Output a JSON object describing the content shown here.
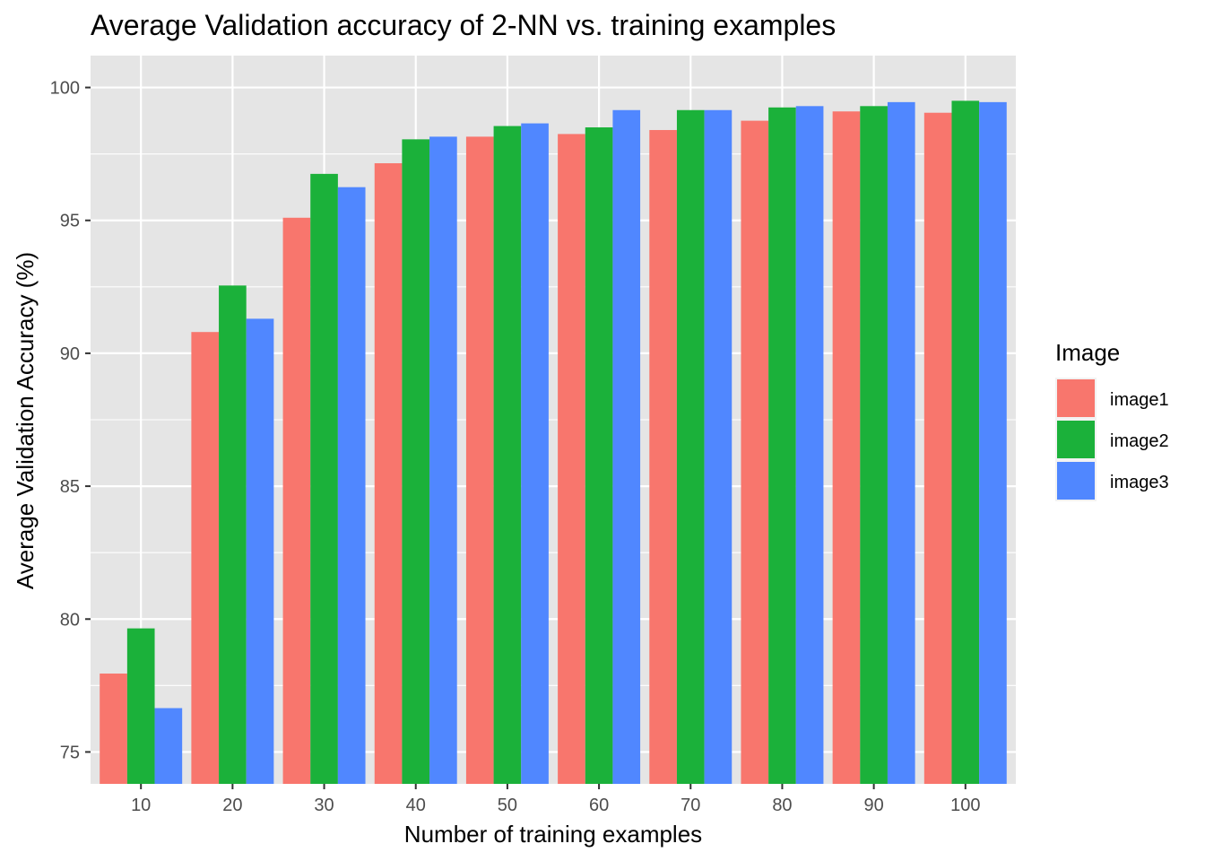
{
  "chart_data": {
    "type": "bar",
    "title": "Average Validation accuracy of 2-NN vs. training examples",
    "xlabel": "Number of training examples",
    "ylabel": "Average Validation Accuracy (%)",
    "categories": [
      "10",
      "20",
      "30",
      "40",
      "50",
      "60",
      "70",
      "80",
      "90",
      "100"
    ],
    "ylim": [
      73.8,
      101.2
    ],
    "yticks": [
      75,
      80,
      85,
      90,
      95,
      100
    ],
    "grid": true,
    "legend": {
      "title": "Image",
      "position": "right"
    },
    "series": [
      {
        "name": "image1",
        "color": "#F8766D",
        "values": [
          77.95,
          90.8,
          95.1,
          97.15,
          98.15,
          98.25,
          98.4,
          98.75,
          99.1,
          99.05
        ]
      },
      {
        "name": "image2",
        "color": "#1BB13A",
        "values": [
          79.65,
          92.55,
          96.75,
          98.05,
          98.55,
          98.5,
          99.15,
          99.25,
          99.3,
          99.5
        ]
      },
      {
        "name": "image3",
        "color": "#5087FF",
        "values": [
          76.65,
          91.3,
          96.25,
          98.15,
          98.65,
          99.15,
          99.15,
          99.3,
          99.45,
          99.45
        ]
      }
    ]
  }
}
